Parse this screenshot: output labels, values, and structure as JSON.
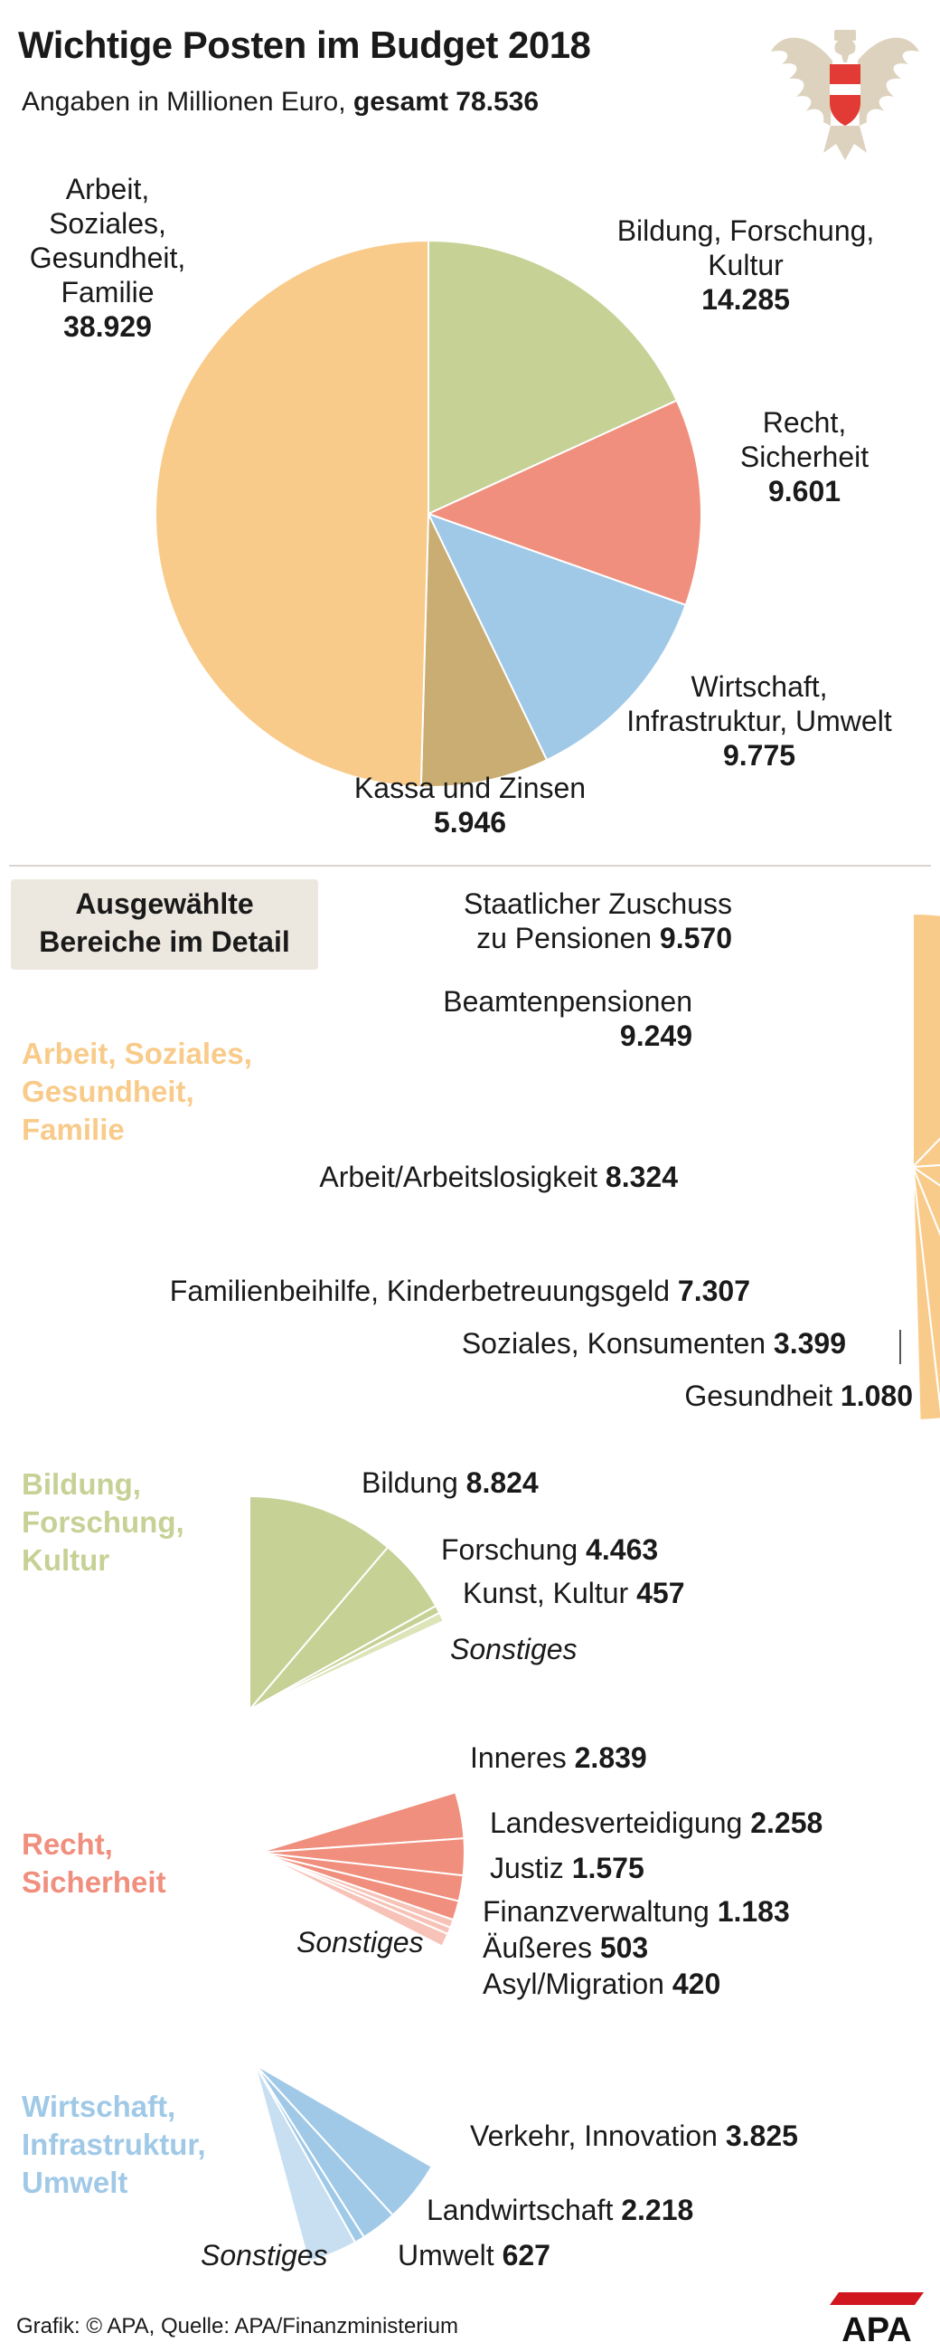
{
  "header": {
    "title": "Wichtige Posten im Budget 2018",
    "subtitle_prefix": "Angaben in Millionen Euro, ",
    "subtitle_total": "gesamt 78.536"
  },
  "detail_box": {
    "line1": "Ausgewählte",
    "line2": "Bereiche im Detail"
  },
  "footer": {
    "credit": "Grafik: © APA, Quelle: APA/Finanzministerium",
    "logo_text": "APA"
  },
  "colors": {
    "arbeit": "#f9cb8a",
    "bildung": "#c6d195",
    "recht": "#f08f7d",
    "wirtschaft": "#a0c9e7",
    "kassa": "#c9ad72",
    "wirtschaft_sonst": "#c7dff1",
    "recht_light": "#f7c2b7",
    "bildung_light": "#dce4b8"
  },
  "chart_data": [
    {
      "type": "pie",
      "title": "Wichtige Posten im Budget 2018",
      "unit": "Mio. Euro",
      "total": 78536,
      "slices": [
        {
          "name": "Bildung, Forschung, Kultur",
          "value": 14285,
          "value_label": "14.285"
        },
        {
          "name": "Recht, Sicherheit",
          "value": 9601,
          "value_label": "9.601"
        },
        {
          "name": "Wirtschaft, Infrastruktur, Umwelt",
          "value": 9775,
          "value_label": "9.775"
        },
        {
          "name": "Kassa und Zinsen",
          "value": 5946,
          "value_label": "5.946"
        },
        {
          "name": "Arbeit, Soziales, Gesundheit, Familie",
          "value": 38929,
          "value_label": "38.929"
        }
      ],
      "labels": {
        "arbeit": [
          "Arbeit,",
          "Soziales,",
          "Gesundheit,",
          "Familie"
        ],
        "bildung": [
          "Bildung, Forschung,",
          "Kultur"
        ],
        "recht": [
          "Recht,",
          "Sicherheit"
        ],
        "wirtschaft": [
          "Wirtschaft,",
          "Infrastruktur, Umwelt"
        ],
        "kassa": [
          "Kassa und Zinsen"
        ]
      }
    },
    {
      "type": "pie",
      "title": "Arbeit, Soziales, Gesundheit, Familie",
      "category_lines": [
        "Arbeit, Soziales,",
        "Gesundheit,",
        "Familie"
      ],
      "slices": [
        {
          "name": "Staatlicher Zuschuss zu Pensionen",
          "value": 9570,
          "value_label": "9.570",
          "lines": [
            "Staatlicher Zuschuss",
            "zu Pensionen"
          ]
        },
        {
          "name": "Beamtenpensionen",
          "value": 9249,
          "value_label": "9.249"
        },
        {
          "name": "Arbeit/Arbeitslosigkeit",
          "value": 8324,
          "value_label": "8.324"
        },
        {
          "name": "Familienbeihilfe, Kinderbetreuungsgeld",
          "value": 7307,
          "value_label": "7.307"
        },
        {
          "name": "Soziales, Konsumenten",
          "value": 3399,
          "value_label": "3.399"
        },
        {
          "name": "Gesundheit",
          "value": 1080,
          "value_label": "1.080"
        }
      ]
    },
    {
      "type": "pie",
      "title": "Bildung, Forschung, Kultur",
      "category_lines": [
        "Bildung,",
        "Forschung,",
        "Kultur"
      ],
      "slices": [
        {
          "name": "Bildung",
          "value": 8824,
          "value_label": "8.824"
        },
        {
          "name": "Forschung",
          "value": 4463,
          "value_label": "4.463"
        },
        {
          "name": "Kunst, Kultur",
          "value": 457,
          "value_label": "457"
        },
        {
          "name": "Sonstiges",
          "value": 541
        }
      ]
    },
    {
      "type": "pie",
      "title": "Recht, Sicherheit",
      "category_lines": [
        "Recht,",
        "Sicherheit"
      ],
      "slices": [
        {
          "name": "Inneres",
          "value": 2839,
          "value_label": "2.839"
        },
        {
          "name": "Landesverteidigung",
          "value": 2258,
          "value_label": "2.258"
        },
        {
          "name": "Justiz",
          "value": 1575,
          "value_label": "1.575"
        },
        {
          "name": "Finanzverwaltung",
          "value": 1183,
          "value_label": "1.183"
        },
        {
          "name": "Äußeres",
          "value": 503,
          "value_label": "503"
        },
        {
          "name": "Asyl/Migration",
          "value": 420,
          "value_label": "420"
        },
        {
          "name": "Sonstiges",
          "value": 823
        }
      ]
    },
    {
      "type": "pie",
      "title": "Wirtschaft, Infrastruktur, Umwelt",
      "category_lines": [
        "Wirtschaft,",
        "Infrastruktur,",
        "Umwelt"
      ],
      "slices": [
        {
          "name": "Verkehr, Innovation",
          "value": 3825,
          "value_label": "3.825"
        },
        {
          "name": "Landwirtschaft",
          "value": 2218,
          "value_label": "2.218"
        },
        {
          "name": "Umwelt",
          "value": 627,
          "value_label": "627"
        },
        {
          "name": "Sonstiges",
          "value": 3105
        }
      ]
    }
  ]
}
